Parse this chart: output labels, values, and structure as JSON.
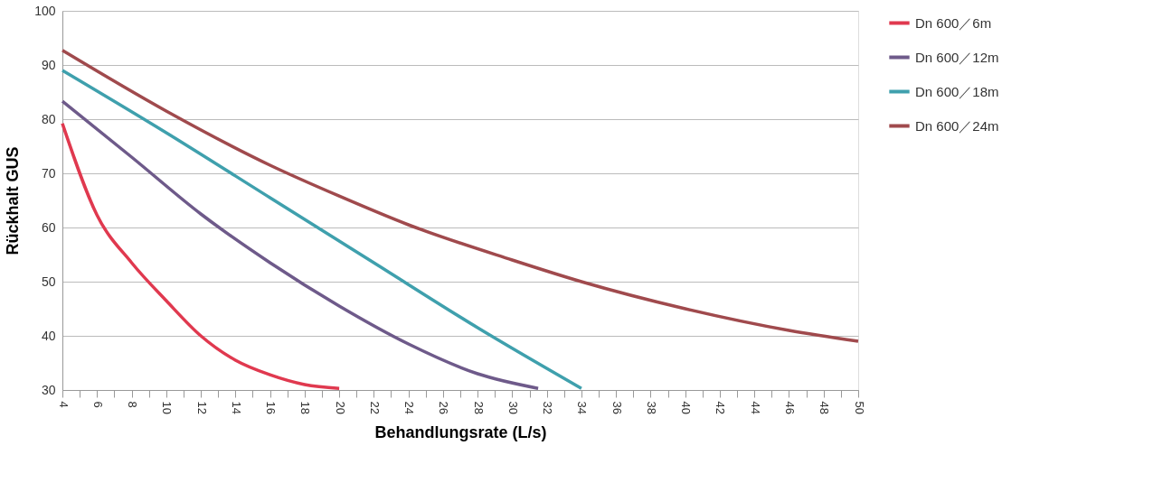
{
  "chart_data": {
    "type": "line",
    "xlabel": "Behandlungsrate (L/s)",
    "ylabel": "Rückhalt GUS",
    "xlim": [
      4,
      50
    ],
    "xticks": [
      4,
      {
        "value": 5,
        "label": null
      },
      6,
      {
        "value": 7,
        "label": null
      },
      8,
      {
        "value": 9,
        "label": null
      },
      10,
      {
        "value": 11,
        "label": null
      },
      12,
      {
        "value": 13,
        "label": null
      },
      14,
      {
        "value": 15,
        "label": null
      },
      16,
      {
        "value": 17,
        "label": null
      },
      18,
      {
        "value": 19,
        "label": null
      },
      20,
      {
        "value": 21,
        "label": null
      },
      22,
      {
        "value": 23,
        "label": null
      },
      24,
      {
        "value": 25,
        "label": null
      },
      26,
      {
        "value": 27,
        "label": null
      },
      28,
      {
        "value": 29,
        "label": null
      },
      30,
      {
        "value": 31,
        "label": null
      },
      32,
      {
        "value": 33,
        "label": null
      },
      34,
      {
        "value": 35,
        "label": null
      },
      36,
      {
        "value": 37,
        "label": null
      },
      38,
      {
        "value": 39,
        "label": null
      },
      40,
      {
        "value": 41,
        "label": null
      },
      42,
      {
        "value": 43,
        "label": null
      },
      44,
      {
        "value": 45,
        "label": null
      },
      46,
      {
        "value": 47,
        "label": null
      },
      48,
      {
        "value": 49,
        "label": null
      },
      50
    ],
    "ylim": [
      30,
      100
    ],
    "yticks": [
      30,
      40,
      50,
      60,
      70,
      80,
      90,
      100
    ],
    "grid": "y",
    "legend": "top right",
    "marker": "none",
    "line_style": "solid",
    "series": [
      {
        "name": "Dn 600／6m",
        "color": "#e0394f",
        "x": [
          4,
          6,
          8,
          10,
          12,
          14,
          16,
          18,
          20
        ],
        "values": [
          79.2,
          62.3,
          53.5,
          46.5,
          40,
          35.5,
          32.8,
          31,
          30.3
        ]
      },
      {
        "name": "Dn 600／12m",
        "color": "#6e5a8a",
        "x": [
          4,
          8,
          12,
          16,
          20,
          24,
          28,
          31.5
        ],
        "values": [
          83.3,
          73,
          62.5,
          53.5,
          45.5,
          38.5,
          33,
          30.3
        ]
      },
      {
        "name": "Dn 600／18m",
        "color": "#3fa0ad",
        "x": [
          4,
          10,
          16,
          22,
          28,
          34
        ],
        "values": [
          89,
          77.5,
          65.5,
          53.5,
          41.5,
          30.3
        ]
      },
      {
        "name": "Dn 600／24m",
        "color": "#a04a4d",
        "x": [
          4,
          10,
          16,
          20,
          24,
          30,
          34,
          40,
          46,
          50
        ],
        "values": [
          92.7,
          81.5,
          71.5,
          65.8,
          60.5,
          54,
          50,
          45,
          41,
          39
        ]
      }
    ]
  }
}
